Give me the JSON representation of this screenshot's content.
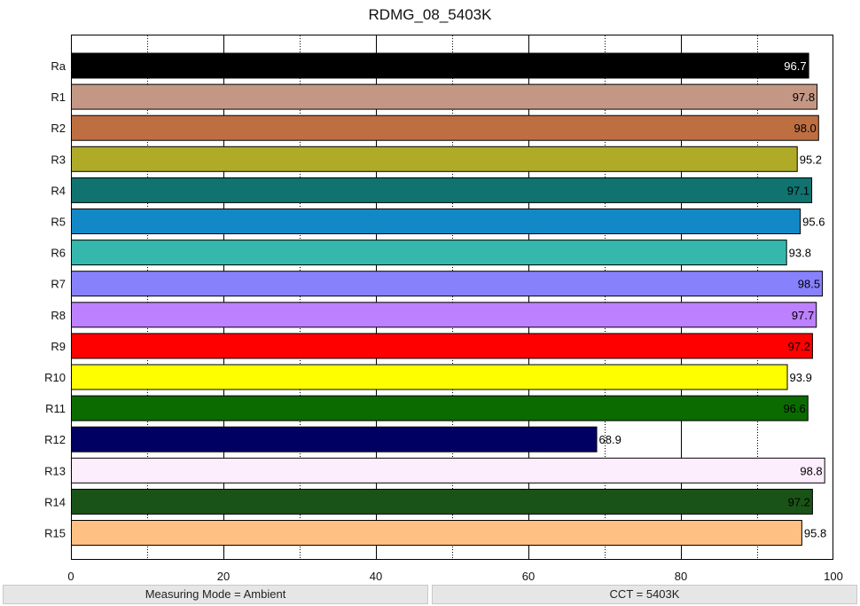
{
  "chart_data": {
    "type": "bar",
    "orientation": "horizontal",
    "title": "RDMG_08_5403K",
    "xlabel": "",
    "ylabel": "",
    "xlim": [
      0,
      100
    ],
    "x_ticks": [
      "0",
      "20",
      "40",
      "60",
      "80",
      "100"
    ],
    "grid": "vertical lines",
    "categories": [
      "Ra",
      "R1",
      "R2",
      "R3",
      "R4",
      "R5",
      "R6",
      "R7",
      "R8",
      "R9",
      "R10",
      "R11",
      "R12",
      "R13",
      "R14",
      "R15"
    ],
    "values": [
      96.7,
      97.8,
      98.0,
      95.2,
      97.1,
      95.6,
      93.8,
      98.5,
      97.7,
      97.2,
      93.9,
      96.6,
      68.9,
      98.8,
      97.2,
      95.8
    ],
    "value_labels": [
      "96.7",
      "97.8",
      "98.0",
      "95.2",
      "97.1",
      "95.6",
      "93.8",
      "98.5",
      "97.7",
      "97.2",
      "93.9",
      "96.6",
      "68.9",
      "98.8",
      "97.2",
      "95.8"
    ],
    "colors": [
      "#000000",
      "#c49784",
      "#bd6f42",
      "#afab29",
      "#107370",
      "#1388c6",
      "#35b7ae",
      "#8781fe",
      "#bd80fe",
      "#fe0000",
      "#fefe00",
      "#0b6b00",
      "#000063",
      "#fdeefd",
      "#1a5317",
      "#fec083"
    ],
    "label_colors": [
      "#ffffff",
      "#000000",
      "#000000",
      "#000000",
      "#000000",
      "#000000",
      "#000000",
      "#000000",
      "#000000",
      "#000000",
      "#000000",
      "#000000",
      "#000000",
      "#000000",
      "#000000",
      "#000000"
    ]
  },
  "status": {
    "left": "Measuring Mode = Ambient",
    "right": "CCT = 5403K"
  }
}
